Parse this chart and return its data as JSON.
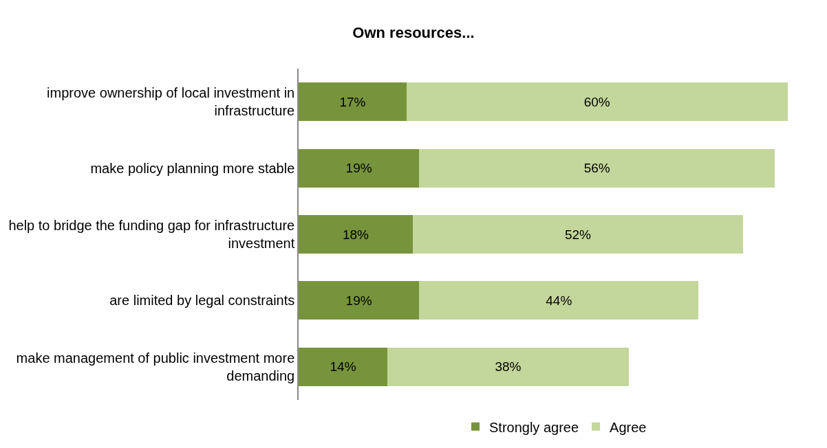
{
  "chart_data": {
    "type": "bar",
    "orientation": "horizontal",
    "stacked": true,
    "title": "Own resources...",
    "categories": [
      "improve ownership of local investment in infrastructure",
      "make policy planning more stable",
      "help to bridge the funding gap for infrastructure investment",
      "are limited by legal constraints",
      "make management of public investment more demanding"
    ],
    "series": [
      {
        "name": "Strongly agree",
        "color": "#77933c",
        "values": [
          17,
          19,
          18,
          19,
          14
        ],
        "value_labels": [
          "17%",
          "19%",
          "18%",
          "19%",
          "14%"
        ]
      },
      {
        "name": "Agree",
        "color": "#c3d69b",
        "values": [
          60,
          56,
          52,
          44,
          38
        ],
        "value_labels": [
          "60%",
          "56%",
          "52%",
          "44%",
          "38%"
        ]
      }
    ],
    "legend": "bottom"
  }
}
